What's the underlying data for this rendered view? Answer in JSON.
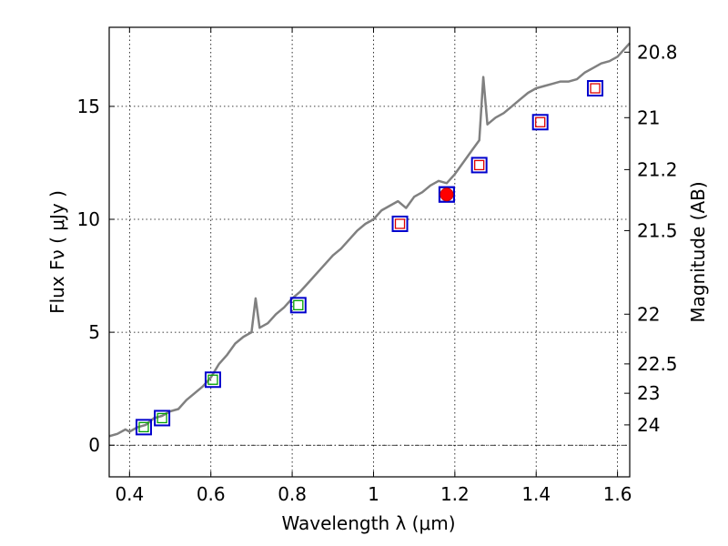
{
  "chart_data": {
    "type": "line",
    "xlabel": "Wavelength  λ (μm)",
    "ylabel_main": "Flux  Fν  ( μJy )",
    "ylabel_right": "Magnitude (AB)",
    "xlim": [
      0.35,
      1.63
    ],
    "ylim": [
      -1.4,
      18.5
    ],
    "x_ticks": [
      0.4,
      0.6,
      0.8,
      1.0,
      1.2,
      1.4,
      1.6
    ],
    "x_tick_labels": [
      "0.4",
      "0.6",
      "0.8",
      "1",
      "1.2",
      "1.4",
      "1.6"
    ],
    "y_ticks": [
      0,
      5,
      10,
      15
    ],
    "y_tick_labels": [
      "0",
      "5",
      "10",
      "15"
    ],
    "right_ticks": [
      {
        "label": "20.8",
        "flux": 17.4
      },
      {
        "label": "21",
        "flux": 14.5
      },
      {
        "label": "21.2",
        "flux": 12.2
      },
      {
        "label": "21.5",
        "flux": 9.5
      },
      {
        "label": "22",
        "flux": 5.8
      },
      {
        "label": "22.5",
        "flux": 3.6
      },
      {
        "label": "23",
        "flux": 2.3
      },
      {
        "label": "24",
        "flux": 0.9
      }
    ],
    "series": [
      {
        "name": "model spectrum",
        "color": "#808080",
        "x": [
          0.35,
          0.37,
          0.39,
          0.4,
          0.42,
          0.44,
          0.46,
          0.48,
          0.5,
          0.52,
          0.54,
          0.56,
          0.58,
          0.6,
          0.62,
          0.64,
          0.66,
          0.68,
          0.7,
          0.71,
          0.72,
          0.74,
          0.76,
          0.78,
          0.8,
          0.82,
          0.84,
          0.86,
          0.88,
          0.9,
          0.92,
          0.94,
          0.96,
          0.98,
          1.0,
          1.02,
          1.04,
          1.06,
          1.08,
          1.1,
          1.12,
          1.14,
          1.16,
          1.18,
          1.2,
          1.22,
          1.24,
          1.26,
          1.27,
          1.28,
          1.3,
          1.32,
          1.34,
          1.36,
          1.38,
          1.4,
          1.42,
          1.44,
          1.46,
          1.48,
          1.5,
          1.52,
          1.54,
          1.56,
          1.58,
          1.6,
          1.63
        ],
        "y": [
          0.4,
          0.5,
          0.7,
          0.6,
          0.8,
          0.9,
          1.2,
          1.3,
          1.5,
          1.6,
          2.0,
          2.3,
          2.6,
          3.0,
          3.6,
          4.0,
          4.5,
          4.8,
          5.0,
          6.5,
          5.2,
          5.4,
          5.8,
          6.1,
          6.5,
          6.8,
          7.2,
          7.6,
          8.0,
          8.4,
          8.7,
          9.1,
          9.5,
          9.8,
          10.0,
          10.4,
          10.6,
          10.8,
          10.5,
          11.0,
          11.2,
          11.5,
          11.7,
          11.6,
          12.0,
          12.5,
          13.0,
          13.5,
          16.3,
          14.2,
          14.5,
          14.7,
          15.0,
          15.3,
          15.6,
          15.8,
          15.9,
          16.0,
          16.1,
          16.1,
          16.2,
          16.5,
          16.7,
          16.9,
          17.0,
          17.2,
          17.8
        ]
      },
      {
        "name": "blue squares",
        "color": "#0000cc",
        "x": [
          0.435,
          0.48,
          0.605,
          0.815,
          1.065,
          1.18,
          1.26,
          1.41,
          1.545
        ],
        "y": [
          0.8,
          1.2,
          2.9,
          6.2,
          9.8,
          11.1,
          12.4,
          14.3,
          15.8
        ]
      },
      {
        "name": "green squares",
        "color": "#00a000",
        "x": [
          0.435,
          0.48,
          0.605,
          0.815
        ],
        "y": [
          0.8,
          1.2,
          2.9,
          6.2
        ]
      },
      {
        "name": "red squares",
        "color": "#dd0000",
        "x": [
          1.065,
          1.26,
          1.41,
          1.545
        ],
        "y": [
          9.8,
          12.4,
          14.3,
          15.8
        ]
      },
      {
        "name": "red circle",
        "color": "#ff0000",
        "x": [
          1.18
        ],
        "y": [
          11.1
        ]
      }
    ],
    "zero_line": 0,
    "grid": true
  }
}
